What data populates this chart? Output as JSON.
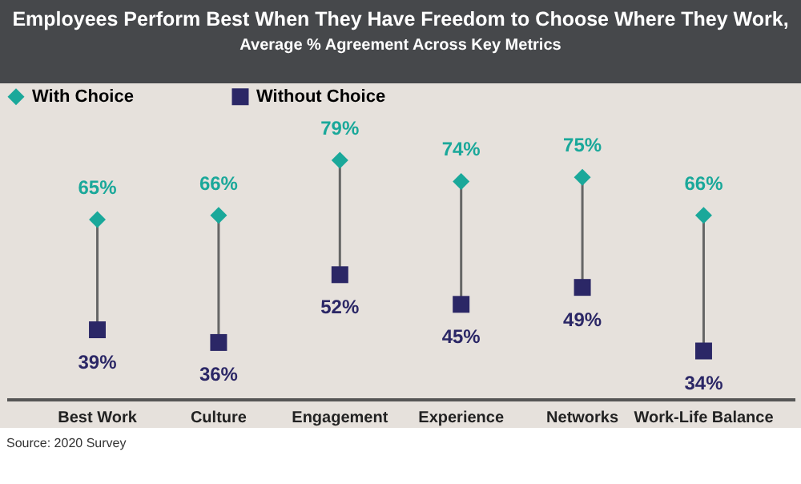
{
  "chart_data": {
    "type": "scatter",
    "title": "Employees Perform Best When They Have Freedom to Choose Where They Work,",
    "subtitle": "Average % Agreement Across Key Metrics",
    "categories": [
      "Best Work",
      "Culture",
      "Engagement",
      "Experience",
      "Networks",
      "Work-Life Balance"
    ],
    "series": [
      {
        "name": "With Choice",
        "color": "#1aa89a",
        "marker": "diamond",
        "values": [
          65,
          66,
          79,
          74,
          75,
          66
        ],
        "value_labels": [
          "65%",
          "66%",
          "79%",
          "74%",
          "75%",
          "66%"
        ]
      },
      {
        "name": "Without Choice",
        "color": "#2b2766",
        "marker": "square",
        "values": [
          39,
          36,
          52,
          45,
          49,
          34
        ],
        "value_labels": [
          "39%",
          "36%",
          "52%",
          "45%",
          "49%",
          "34%"
        ]
      }
    ],
    "legend": "top",
    "annotations": [
      "Source: 2020 Survey"
    ]
  }
}
